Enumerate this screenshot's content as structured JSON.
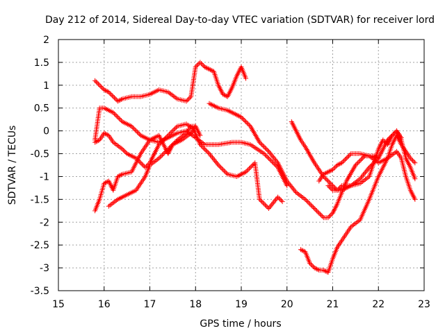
{
  "chart_data": {
    "type": "scatter",
    "title": "Day 212 of 2014, Sidereal Day-to-day VTEC variation (SDTVAR) for receiver lord",
    "xlabel": "GPS time / hours",
    "ylabel": "SDTVAR / TECUs",
    "xlim": [
      15,
      23
    ],
    "ylim": [
      -3.5,
      2
    ],
    "xticks": [
      "15",
      "16",
      "17",
      "18",
      "19",
      "20",
      "21",
      "22",
      "23"
    ],
    "yticks": [
      "-3.5",
      "-3",
      "-2.5",
      "-2",
      "-1.5",
      "-1",
      "-0.5",
      "0",
      "0.5",
      "1",
      "1.5",
      "2"
    ],
    "grid": true,
    "marker": "+",
    "color": "#ff0000",
    "series": [
      {
        "x": [
          15.8,
          15.9,
          16.0,
          16.1,
          16.2,
          16.3,
          16.4,
          16.6,
          16.8,
          17.0,
          17.2,
          17.4,
          17.6,
          17.8,
          17.9,
          18.0,
          18.1,
          18.2,
          18.3,
          18.4,
          18.5,
          18.6,
          18.7,
          18.8,
          18.9,
          19.0,
          19.1
        ],
        "y": [
          1.1,
          1.0,
          0.9,
          0.85,
          0.75,
          0.65,
          0.7,
          0.75,
          0.75,
          0.8,
          0.9,
          0.85,
          0.7,
          0.65,
          0.75,
          1.4,
          1.5,
          1.4,
          1.35,
          1.3,
          1.0,
          0.8,
          0.75,
          0.95,
          1.2,
          1.4,
          1.15
        ]
      },
      {
        "x": [
          15.8,
          15.9,
          16.0,
          16.2,
          16.4,
          16.6,
          16.8,
          17.0,
          17.2,
          17.4,
          17.6,
          17.8,
          18.0,
          18.2,
          18.5,
          18.8,
          19.0,
          19.2,
          19.5,
          19.8,
          20.0
        ],
        "y": [
          -0.2,
          0.5,
          0.5,
          0.4,
          0.2,
          0.1,
          -0.1,
          -0.2,
          -0.25,
          -0.15,
          -0.05,
          0.0,
          -0.15,
          -0.3,
          -0.3,
          -0.25,
          -0.25,
          -0.3,
          -0.5,
          -0.8,
          -1.2
        ]
      },
      {
        "x": [
          15.8,
          15.9,
          16.0,
          16.1,
          16.2,
          16.4,
          16.5,
          16.7,
          16.9,
          17.0,
          17.2,
          17.4,
          17.6,
          17.8,
          17.95,
          18.1,
          18.3,
          18.5,
          18.7,
          18.9,
          19.1,
          19.3,
          19.4,
          19.6,
          19.8,
          19.9
        ],
        "y": [
          -0.25,
          -0.2,
          -0.05,
          -0.1,
          -0.25,
          -0.4,
          -0.5,
          -0.6,
          -0.8,
          -0.7,
          -0.3,
          -0.1,
          0.1,
          0.15,
          0.05,
          -0.3,
          -0.5,
          -0.75,
          -0.95,
          -1.0,
          -0.9,
          -0.7,
          -1.5,
          -1.7,
          -1.45,
          -1.55
        ]
      },
      {
        "x": [
          15.8,
          15.9,
          16.0,
          16.1,
          16.2,
          16.3,
          16.4,
          16.6,
          16.8,
          17.0,
          17.2,
          17.4,
          17.5,
          17.7,
          17.9,
          18.0
        ],
        "y": [
          -1.75,
          -1.5,
          -1.15,
          -1.1,
          -1.3,
          -1.0,
          -0.95,
          -0.9,
          -0.5,
          -0.2,
          -0.1,
          -0.5,
          -0.3,
          -0.2,
          -0.05,
          0.1
        ]
      },
      {
        "x": [
          16.1,
          16.3,
          16.5,
          16.7,
          16.9,
          17.0,
          17.2,
          17.4,
          17.6,
          17.8,
          17.9,
          18.0,
          18.1
        ],
        "y": [
          -1.65,
          -1.5,
          -1.4,
          -1.3,
          -1.0,
          -0.75,
          -0.6,
          -0.4,
          -0.2,
          -0.05,
          0.1,
          0.1,
          -0.1
        ]
      },
      {
        "x": [
          18.3,
          18.5,
          18.7,
          18.9,
          19.0,
          19.2,
          19.4,
          19.6,
          19.8,
          20.0,
          20.2,
          20.4,
          20.6,
          20.8,
          20.9,
          21.0,
          21.1,
          21.3,
          21.5,
          21.7,
          21.9,
          22.0
        ],
        "y": [
          0.6,
          0.5,
          0.45,
          0.35,
          0.3,
          0.1,
          -0.25,
          -0.45,
          -0.7,
          -1.1,
          -1.35,
          -1.5,
          -1.7,
          -1.9,
          -1.9,
          -1.8,
          -1.6,
          -1.1,
          -0.75,
          -0.55,
          -0.55,
          -0.6
        ]
      },
      {
        "x": [
          20.1,
          20.2,
          20.3,
          20.4,
          20.6,
          20.8,
          21.0,
          21.1,
          21.2,
          21.4,
          21.6,
          21.8,
          22.0,
          22.2,
          22.4,
          22.5,
          22.6,
          22.7,
          22.8
        ],
        "y": [
          0.2,
          0.0,
          -0.2,
          -0.35,
          -0.7,
          -1.0,
          -1.2,
          -1.3,
          -1.2,
          -1.2,
          -1.05,
          -0.8,
          -0.6,
          -0.2,
          0.0,
          -0.2,
          -0.6,
          -0.8,
          -1.05
        ]
      },
      {
        "x": [
          20.3,
          20.4,
          20.5,
          20.6,
          20.7,
          20.8,
          20.9,
          21.0,
          21.1,
          21.2,
          21.4,
          21.6,
          21.8,
          22.0,
          22.2,
          22.4,
          22.5,
          22.6,
          22.7,
          22.8
        ],
        "y": [
          -2.6,
          -2.65,
          -2.9,
          -3.0,
          -3.05,
          -3.05,
          -3.1,
          -2.8,
          -2.55,
          -2.4,
          -2.1,
          -1.95,
          -1.5,
          -1.0,
          -0.6,
          -0.45,
          -0.6,
          -1.0,
          -1.3,
          -1.5
        ]
      },
      {
        "x": [
          20.7,
          20.8,
          20.9,
          21.0,
          21.1,
          21.2,
          21.4,
          21.6,
          21.8,
          22.0,
          22.2,
          22.3,
          22.4,
          22.5,
          22.6,
          22.7,
          22.8
        ],
        "y": [
          -1.1,
          -0.95,
          -0.9,
          -0.85,
          -0.75,
          -0.7,
          -0.5,
          -0.5,
          -0.55,
          -0.7,
          -0.6,
          -0.3,
          -0.1,
          -0.3,
          -0.45,
          -0.6,
          -0.7
        ]
      },
      {
        "x": [
          20.9,
          21.0,
          21.2,
          21.4,
          21.6,
          21.8,
          21.9,
          22.0,
          22.1,
          22.2,
          22.3,
          22.4,
          22.5
        ],
        "y": [
          -1.2,
          -1.3,
          -1.3,
          -1.2,
          -1.15,
          -1.0,
          -0.7,
          -0.4,
          -0.2,
          -0.3,
          -0.1,
          0.0,
          -0.15
        ]
      }
    ]
  }
}
